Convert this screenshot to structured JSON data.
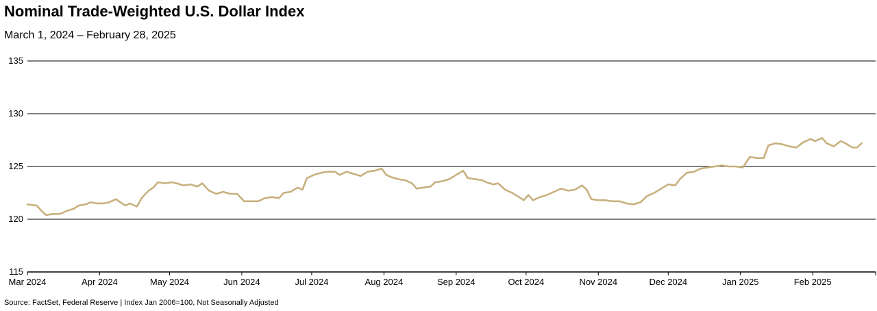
{
  "chart_data": {
    "type": "line",
    "title": "Nominal Trade-Weighted U.S. Dollar Index",
    "subtitle": "March 1, 2024 – February 28, 2025",
    "source": "Source: FactSet, Federal Reserve | Index Jan 2006=100, Not Seasonally Adjusted",
    "ylim": [
      115,
      135
    ],
    "yticks": [
      115,
      120,
      125,
      130,
      135
    ],
    "grid": true,
    "legend": "none",
    "x_range": [
      "2024-03-01",
      "2025-02-28"
    ],
    "xticks": [
      {
        "date": "2024-03-01",
        "label": "Mar 2024"
      },
      {
        "date": "2024-04-01",
        "label": "Apr 2024"
      },
      {
        "date": "2024-05-01",
        "label": "May 2024"
      },
      {
        "date": "2024-06-01",
        "label": "Jun 2024"
      },
      {
        "date": "2024-07-01",
        "label": "Jul 2024"
      },
      {
        "date": "2024-08-01",
        "label": "Aug 2024"
      },
      {
        "date": "2024-09-01",
        "label": "Sep 2024"
      },
      {
        "date": "2024-10-01",
        "label": "Oct 2024"
      },
      {
        "date": "2024-11-01",
        "label": "Nov 2024"
      },
      {
        "date": "2024-12-01",
        "label": "Dec 2024"
      },
      {
        "date": "2025-01-01",
        "label": "Jan 2025"
      },
      {
        "date": "2025-02-01",
        "label": "Feb 2025"
      }
    ],
    "series": [
      {
        "color": "#c8b07e",
        "points": [
          [
            "2024-03-01",
            121.4
          ],
          [
            "2024-03-05",
            121.3
          ],
          [
            "2024-03-07",
            120.8
          ],
          [
            "2024-03-09",
            120.4
          ],
          [
            "2024-03-12",
            120.5
          ],
          [
            "2024-03-15",
            120.5
          ],
          [
            "2024-03-18",
            120.8
          ],
          [
            "2024-03-21",
            121.0
          ],
          [
            "2024-03-23",
            121.3
          ],
          [
            "2024-03-26",
            121.4
          ],
          [
            "2024-03-28",
            121.6
          ],
          [
            "2024-03-31",
            121.5
          ],
          [
            "2024-04-03",
            121.5
          ],
          [
            "2024-04-05",
            121.6
          ],
          [
            "2024-04-08",
            121.9
          ],
          [
            "2024-04-10",
            121.6
          ],
          [
            "2024-04-12",
            121.3
          ],
          [
            "2024-04-14",
            121.5
          ],
          [
            "2024-04-17",
            121.2
          ],
          [
            "2024-04-19",
            122.0
          ],
          [
            "2024-04-22",
            122.7
          ],
          [
            "2024-04-24",
            123.0
          ],
          [
            "2024-04-26",
            123.5
          ],
          [
            "2024-04-29",
            123.4
          ],
          [
            "2024-05-02",
            123.5
          ],
          [
            "2024-05-04",
            123.4
          ],
          [
            "2024-05-07",
            123.2
          ],
          [
            "2024-05-10",
            123.3
          ],
          [
            "2024-05-13",
            123.1
          ],
          [
            "2024-05-15",
            123.4
          ],
          [
            "2024-05-18",
            122.7
          ],
          [
            "2024-05-21",
            122.4
          ],
          [
            "2024-05-24",
            122.6
          ],
          [
            "2024-05-27",
            122.4
          ],
          [
            "2024-05-30",
            122.4
          ],
          [
            "2024-06-02",
            121.7
          ],
          [
            "2024-06-05",
            121.7
          ],
          [
            "2024-06-08",
            121.7
          ],
          [
            "2024-06-11",
            122.0
          ],
          [
            "2024-06-14",
            122.1
          ],
          [
            "2024-06-17",
            122.0
          ],
          [
            "2024-06-19",
            122.5
          ],
          [
            "2024-06-22",
            122.6
          ],
          [
            "2024-06-25",
            123.0
          ],
          [
            "2024-06-27",
            122.8
          ],
          [
            "2024-06-29",
            123.9
          ],
          [
            "2024-07-02",
            124.2
          ],
          [
            "2024-07-05",
            124.4
          ],
          [
            "2024-07-08",
            124.5
          ],
          [
            "2024-07-11",
            124.5
          ],
          [
            "2024-07-13",
            124.2
          ],
          [
            "2024-07-16",
            124.5
          ],
          [
            "2024-07-19",
            124.3
          ],
          [
            "2024-07-22",
            124.1
          ],
          [
            "2024-07-25",
            124.5
          ],
          [
            "2024-07-28",
            124.6
          ],
          [
            "2024-07-31",
            124.8
          ],
          [
            "2024-08-02",
            124.2
          ],
          [
            "2024-08-04",
            124.0
          ],
          [
            "2024-08-07",
            123.8
          ],
          [
            "2024-08-10",
            123.7
          ],
          [
            "2024-08-13",
            123.4
          ],
          [
            "2024-08-15",
            122.9
          ],
          [
            "2024-08-18",
            123.0
          ],
          [
            "2024-08-21",
            123.1
          ],
          [
            "2024-08-23",
            123.5
          ],
          [
            "2024-08-26",
            123.6
          ],
          [
            "2024-08-29",
            123.8
          ],
          [
            "2024-09-01",
            124.2
          ],
          [
            "2024-09-04",
            124.6
          ],
          [
            "2024-09-06",
            123.9
          ],
          [
            "2024-09-09",
            123.8
          ],
          [
            "2024-09-12",
            123.7
          ],
          [
            "2024-09-14",
            123.5
          ],
          [
            "2024-09-17",
            123.3
          ],
          [
            "2024-09-19",
            123.4
          ],
          [
            "2024-09-22",
            122.8
          ],
          [
            "2024-09-25",
            122.5
          ],
          [
            "2024-09-28",
            122.1
          ],
          [
            "2024-09-30",
            121.8
          ],
          [
            "2024-10-02",
            122.3
          ],
          [
            "2024-10-04",
            121.8
          ],
          [
            "2024-10-07",
            122.1
          ],
          [
            "2024-10-10",
            122.3
          ],
          [
            "2024-10-13",
            122.6
          ],
          [
            "2024-10-16",
            122.9
          ],
          [
            "2024-10-19",
            122.7
          ],
          [
            "2024-10-22",
            122.8
          ],
          [
            "2024-10-25",
            123.2
          ],
          [
            "2024-10-27",
            122.8
          ],
          [
            "2024-10-29",
            121.9
          ],
          [
            "2024-11-01",
            121.8
          ],
          [
            "2024-11-04",
            121.8
          ],
          [
            "2024-11-07",
            121.7
          ],
          [
            "2024-11-10",
            121.7
          ],
          [
            "2024-11-13",
            121.5
          ],
          [
            "2024-11-16",
            121.4
          ],
          [
            "2024-11-19",
            121.6
          ],
          [
            "2024-11-22",
            122.2
          ],
          [
            "2024-11-25",
            122.5
          ],
          [
            "2024-11-28",
            122.9
          ],
          [
            "2024-12-01",
            123.3
          ],
          [
            "2024-12-04",
            123.2
          ],
          [
            "2024-12-06",
            123.8
          ],
          [
            "2024-12-09",
            124.4
          ],
          [
            "2024-12-12",
            124.5
          ],
          [
            "2024-12-15",
            124.8
          ],
          [
            "2024-12-18",
            124.9
          ],
          [
            "2024-12-21",
            125.0
          ],
          [
            "2024-12-24",
            125.1
          ],
          [
            "2024-12-27",
            125.0
          ],
          [
            "2024-12-30",
            125.0
          ],
          [
            "2025-01-02",
            124.9
          ],
          [
            "2025-01-05",
            125.9
          ],
          [
            "2025-01-08",
            125.8
          ],
          [
            "2025-01-11",
            125.8
          ],
          [
            "2025-01-13",
            127.0
          ],
          [
            "2025-01-16",
            127.2
          ],
          [
            "2025-01-19",
            127.1
          ],
          [
            "2025-01-22",
            126.9
          ],
          [
            "2025-01-25",
            126.8
          ],
          [
            "2025-01-28",
            127.3
          ],
          [
            "2025-01-31",
            127.6
          ],
          [
            "2025-02-02",
            127.4
          ],
          [
            "2025-02-05",
            127.7
          ],
          [
            "2025-02-07",
            127.2
          ],
          [
            "2025-02-10",
            126.9
          ],
          [
            "2025-02-13",
            127.4
          ],
          [
            "2025-02-15",
            127.2
          ],
          [
            "2025-02-18",
            126.8
          ],
          [
            "2025-02-20",
            126.8
          ],
          [
            "2025-02-22",
            127.2
          ]
        ]
      }
    ]
  }
}
